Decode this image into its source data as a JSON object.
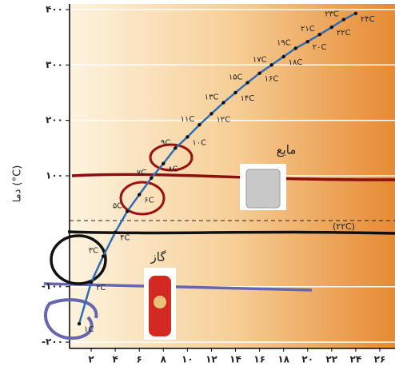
{
  "chart_data": {
    "type": "line",
    "y_label": "دما (°C)",
    "x": [
      1,
      2,
      3,
      4,
      5,
      6,
      7,
      8,
      9,
      10,
      11,
      12,
      13,
      14,
      15,
      16,
      17,
      18,
      19,
      20,
      21,
      22,
      23,
      24
    ],
    "values": [
      -167,
      -92,
      -45,
      -2,
      36,
      66,
      96,
      122,
      150,
      170,
      192,
      212,
      232,
      250,
      268,
      285,
      300,
      315,
      330,
      342,
      355,
      368,
      382,
      393
    ],
    "point_labels": [
      "۱C",
      "۲C",
      "۳C",
      "۴C",
      "۵C",
      "۶C",
      "۷C",
      "۸C",
      "۹C",
      "۱۰C",
      "۱۱C",
      "۱۲C",
      "۱۳C",
      "۱۴C",
      "۱۵C",
      "۱۶C",
      "۱۷C",
      "۱۸C",
      "۱۹C",
      "۲۰C",
      "۲۱C",
      "۲۲C",
      "۲۳C",
      "۲۴C"
    ],
    "color": "#2f6db5",
    "xlim": [
      0.2,
      27
    ],
    "ylim": [
      -210,
      410
    ],
    "xticks": [
      {
        "value": 2,
        "label": "۲"
      },
      {
        "value": 4,
        "label": "۴"
      },
      {
        "value": 6,
        "label": "۶"
      },
      {
        "value": 8,
        "label": "۸"
      },
      {
        "value": 10,
        "label": "۱۰"
      },
      {
        "value": 12,
        "label": "۱۲"
      },
      {
        "value": 14,
        "label": "۱۴"
      },
      {
        "value": 16,
        "label": "۱۶"
      },
      {
        "value": 18,
        "label": "۱۸"
      },
      {
        "value": 20,
        "label": "۲۰"
      },
      {
        "value": 22,
        "label": "۲۲"
      },
      {
        "value": 24,
        "label": "۲۴"
      },
      {
        "value": 26,
        "label": "۲۶"
      }
    ],
    "yticks": [
      {
        "value": -200,
        "label": "-۲۰۰"
      },
      {
        "value": -100,
        "label": "-۱۰۰"
      },
      {
        "value": 100,
        "label": "۱۰۰"
      },
      {
        "value": 200,
        "label": "۲۰۰"
      },
      {
        "value": 300,
        "label": "۳۰۰"
      },
      {
        "value": 400,
        "label": "۴۰۰"
      }
    ],
    "grid": true,
    "annotations": {
      "liquid": "مایع",
      "gas": "گاز",
      "room": "(۲۲C)"
    }
  }
}
